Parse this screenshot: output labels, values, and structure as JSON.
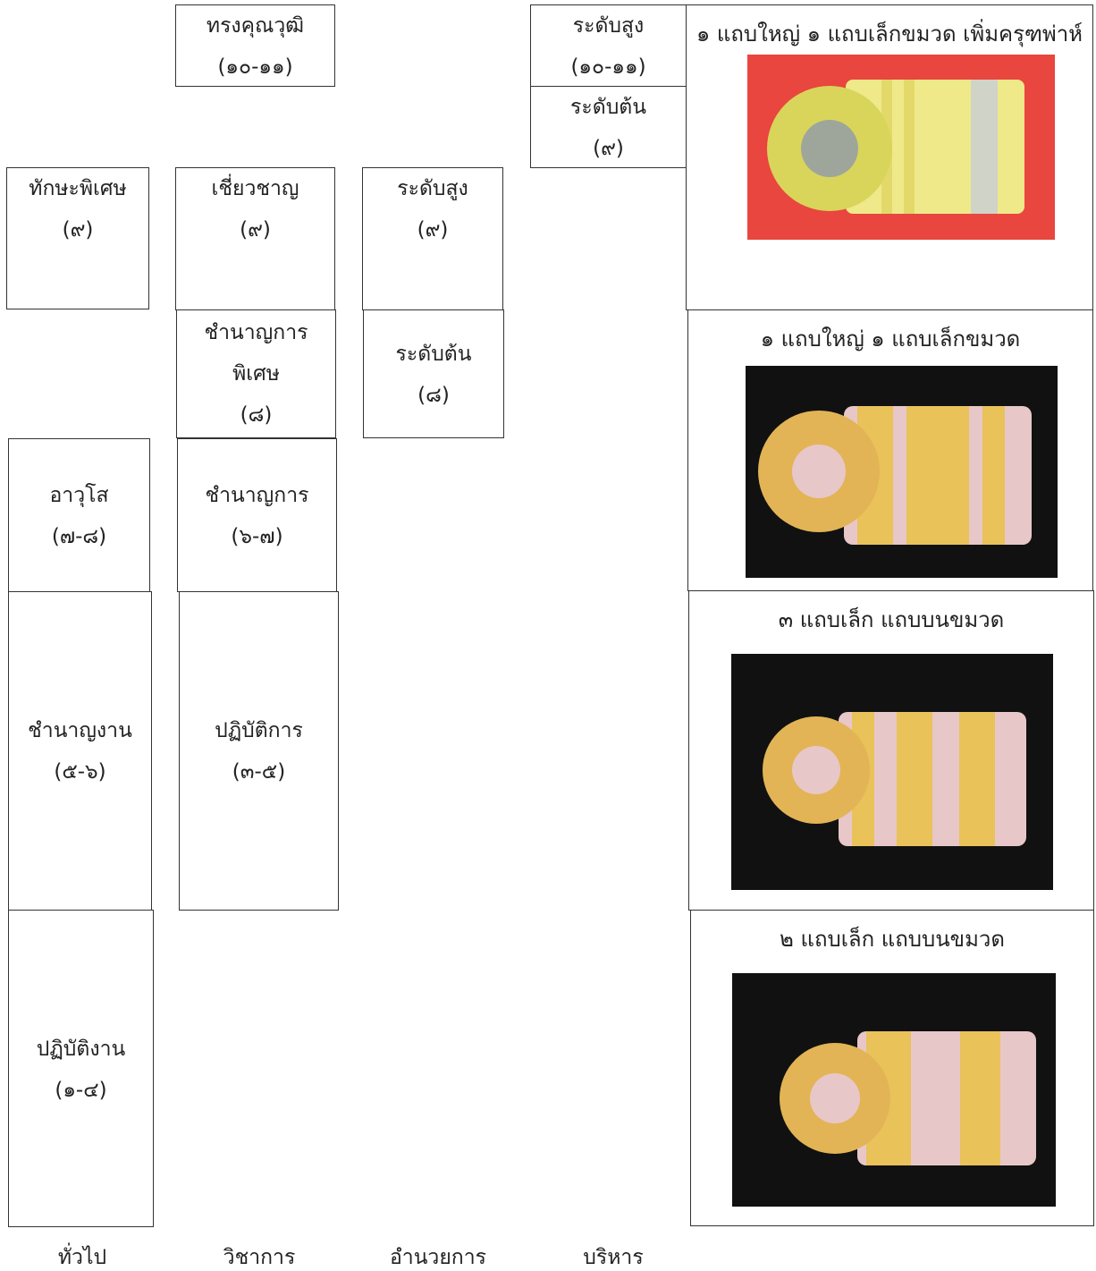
{
  "general": [
    {
      "lines": [
        "ทักษะพิเศษ",
        "(๙)"
      ]
    },
    {
      "lines": [
        "อาวุโส",
        "(๗-๘)"
      ]
    },
    {
      "lines": [
        "ชำนาญงาน",
        "(๕-๖)"
      ]
    },
    {
      "lines": [
        "ปฏิบัติงาน",
        "(๑-๔)"
      ]
    }
  ],
  "academic": [
    {
      "lines": [
        "ทรงคุณวุฒิ",
        "(๑๐-๑๑)"
      ]
    },
    {
      "lines": [
        "เชี่ยวชาญ",
        "(๙)"
      ]
    },
    {
      "lines": [
        "ชำนาญการ",
        "พิเศษ",
        "(๘)"
      ]
    },
    {
      "lines": [
        "ชำนาญการ",
        "(๖-๗)"
      ]
    },
    {
      "lines": [
        "ปฏิบัติการ",
        "(๓-๕)"
      ]
    }
  ],
  "director": [
    {
      "lines": [
        "ระดับสูง",
        "(๙)"
      ]
    },
    {
      "lines": [
        "ระดับต้น",
        "(๘)"
      ]
    }
  ],
  "executive": [
    {
      "lines": [
        "ระดับสูง",
        "(๑๐-๑๑)"
      ]
    },
    {
      "lines": [
        "ระดับต้น",
        "(๙)"
      ]
    }
  ],
  "insignia": [
    {
      "caption": "๑ แถบใหญ่ ๑ แถบเล็กขมวด เพิ่มครุฑพ่าห์"
    },
    {
      "caption": "๑ แถบใหญ่ ๑ แถบเล็กขมวด"
    },
    {
      "caption": "๓ แถบเล็ก แถบบนขมวด"
    },
    {
      "caption": "๒ แถบเล็ก แถบบนขมวด"
    }
  ],
  "columns": [
    "ทั่วไป",
    "วิชาการ",
    "อำนวยการ",
    "บริหาร"
  ]
}
